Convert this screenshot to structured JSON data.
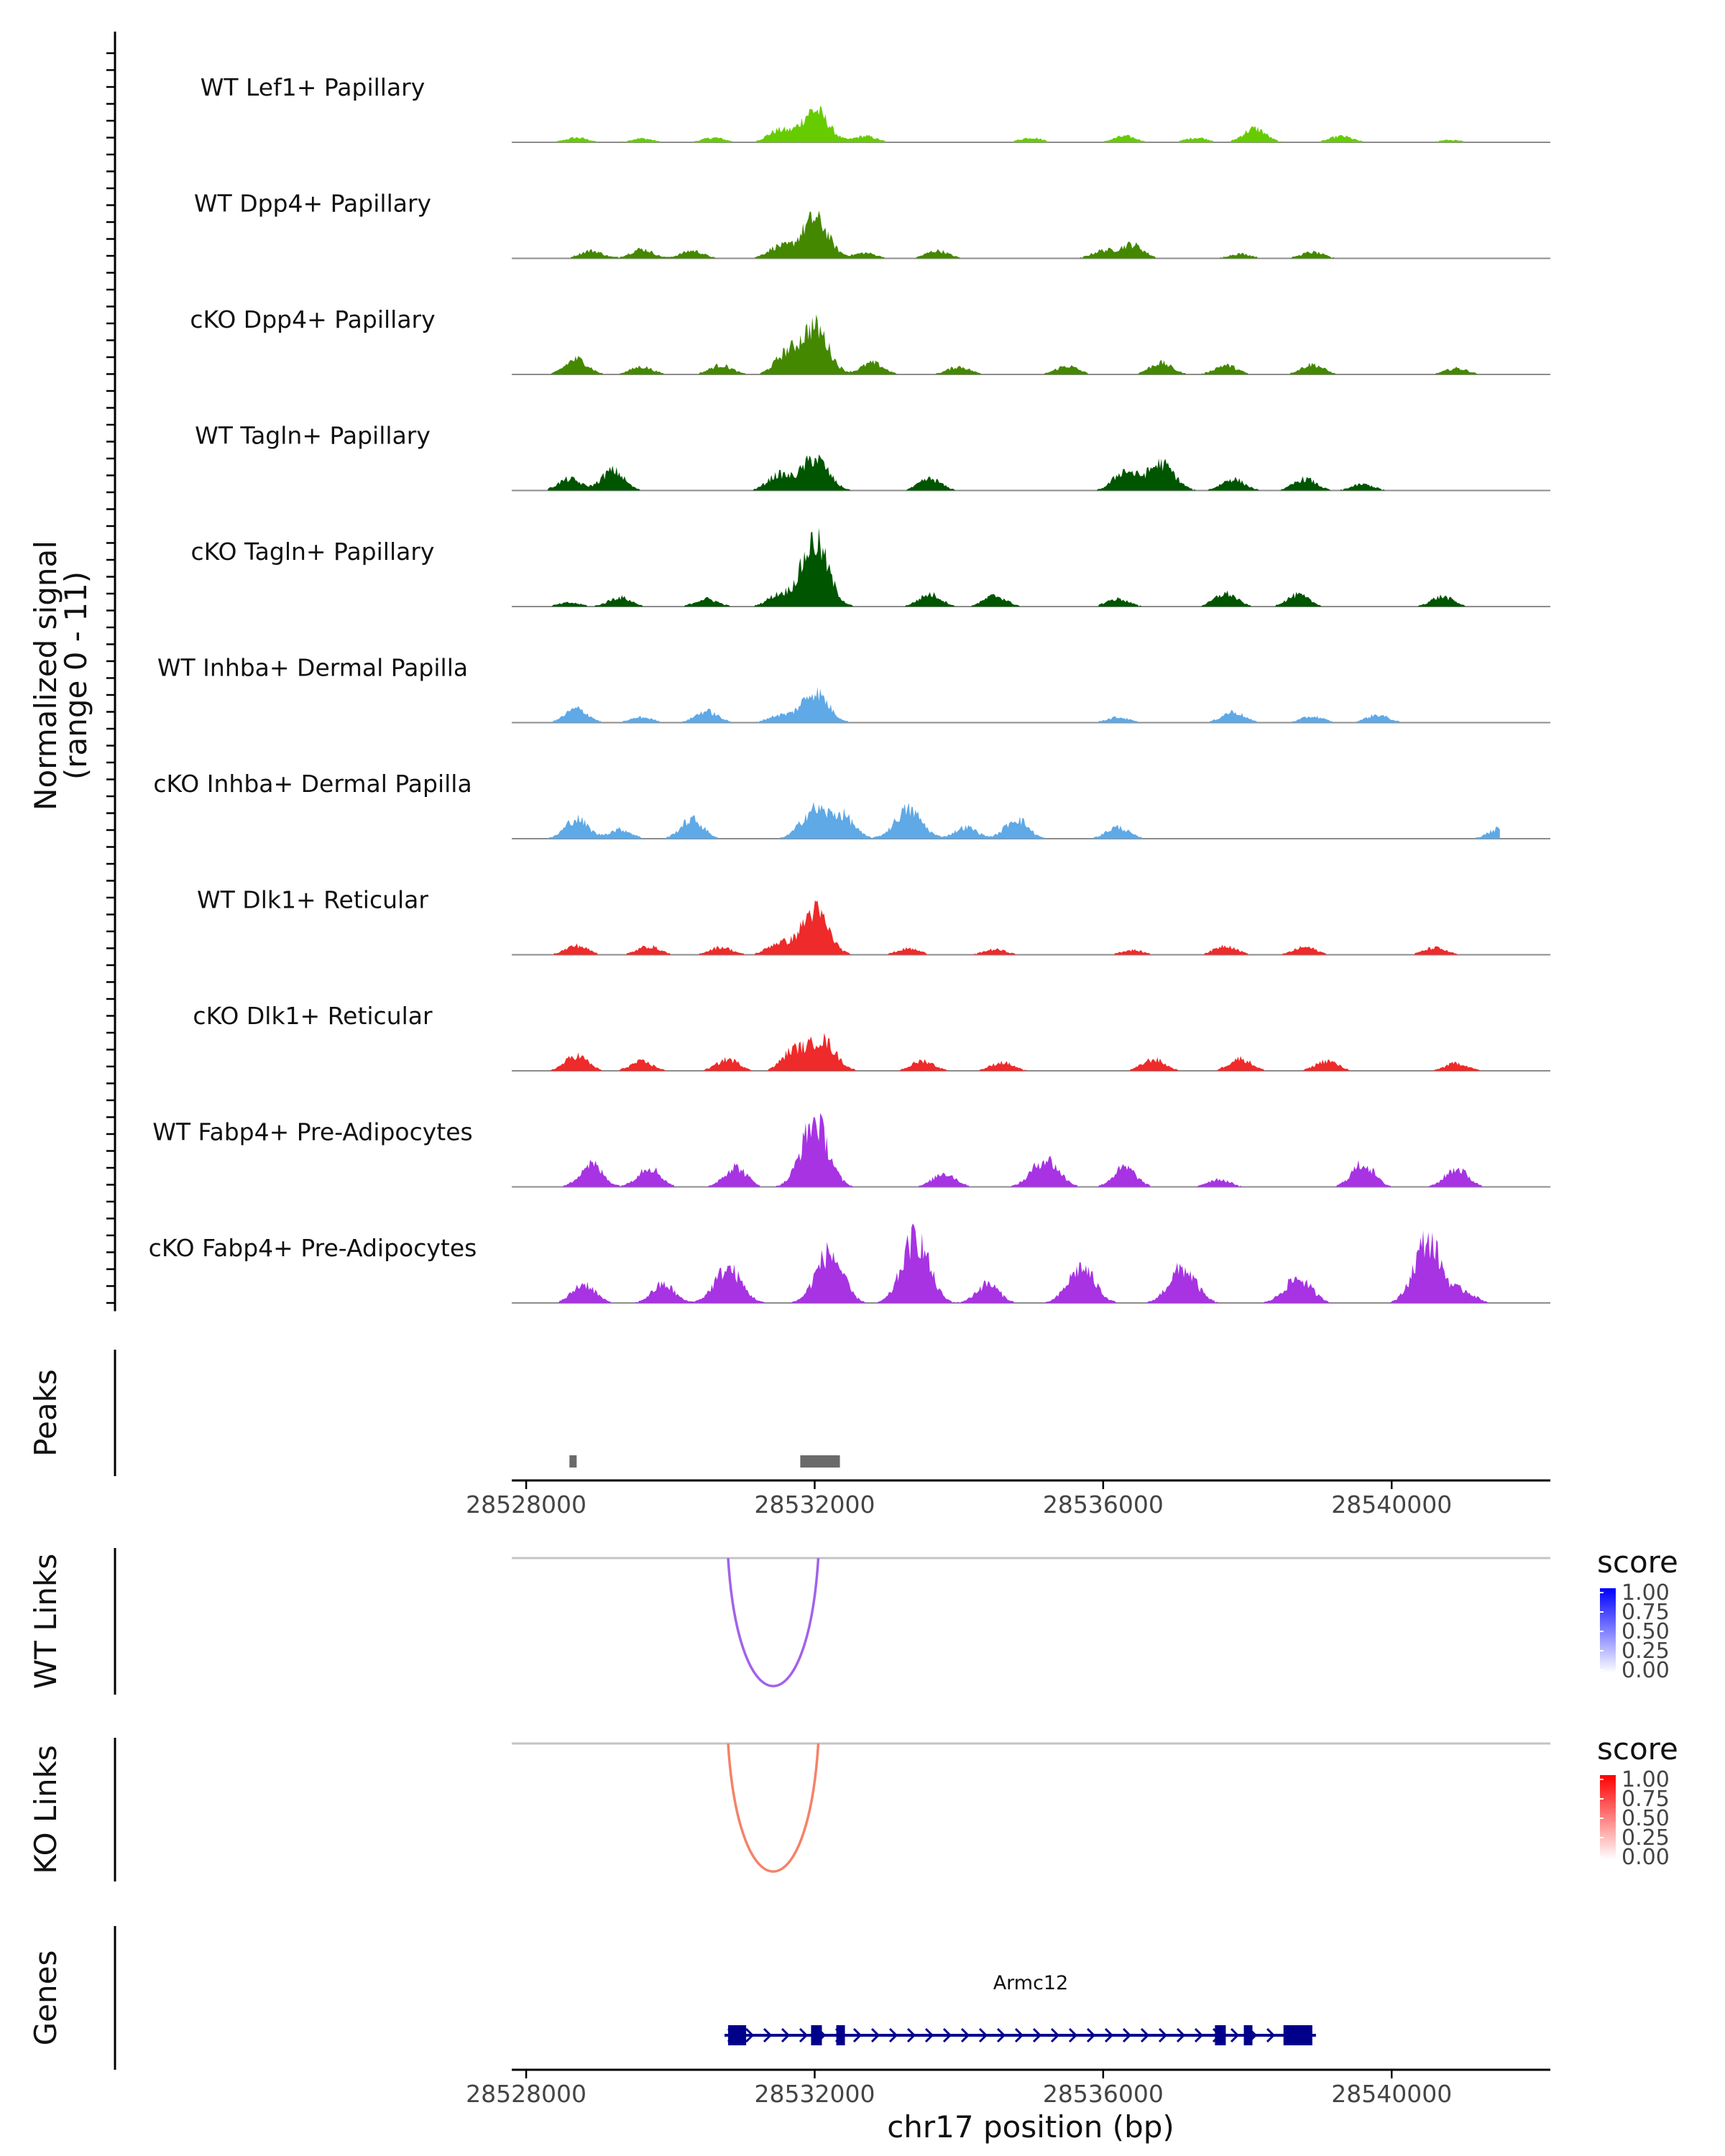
{
  "chart_data": {
    "type": "area",
    "title": "",
    "coverage": {
      "ylabel": [
        "Normalized signal",
        "(range 0 - 11)"
      ],
      "ylim": [
        0,
        11
      ],
      "xlim": [
        28527800,
        28542200
      ],
      "tracks": [
        {
          "name": "WT Lef1+ Papillary",
          "color": "#66cc00",
          "peaks": [
            [
              28528700,
              0.6
            ],
            [
              28529600,
              0.5
            ],
            [
              28530600,
              0.6
            ],
            [
              28531500,
              1.5
            ],
            [
              28532000,
              4.2
            ],
            [
              28532700,
              0.8
            ],
            [
              28535000,
              0.6
            ],
            [
              28536300,
              0.8
            ],
            [
              28537300,
              0.6
            ],
            [
              28538100,
              1.8
            ],
            [
              28539300,
              0.8
            ],
            [
              28540800,
              0.3
            ]
          ]
        },
        {
          "name": "WT Dpp4+ Papillary",
          "color": "#448800",
          "peaks": [
            [
              28528900,
              1.0
            ],
            [
              28529600,
              1.2
            ],
            [
              28530300,
              1.0
            ],
            [
              28531500,
              1.5
            ],
            [
              28532000,
              5.2
            ],
            [
              28532700,
              0.7
            ],
            [
              28533700,
              1.0
            ],
            [
              28536000,
              1.0
            ],
            [
              28536400,
              1.8
            ],
            [
              28537900,
              0.6
            ],
            [
              28538900,
              0.8
            ]
          ]
        },
        {
          "name": "cKO Dpp4+ Papillary",
          "color": "#448800",
          "peaks": [
            [
              28528700,
              2.0
            ],
            [
              28529600,
              1.0
            ],
            [
              28530700,
              1.2
            ],
            [
              28531600,
              2.5
            ],
            [
              28532000,
              6.2
            ],
            [
              28532800,
              1.5
            ],
            [
              28534000,
              1.0
            ],
            [
              28535500,
              1.1
            ],
            [
              28536800,
              1.5
            ],
            [
              28537700,
              1.2
            ],
            [
              28538900,
              1.3
            ],
            [
              28540900,
              0.8
            ]
          ]
        },
        {
          "name": "WT Tagln+ Papillary",
          "color": "#005500",
          "peaks": [
            [
              28528600,
              1.5
            ],
            [
              28529200,
              2.6
            ],
            [
              28531500,
              2.0
            ],
            [
              28532000,
              4.2
            ],
            [
              28533600,
              1.5
            ],
            [
              28536300,
              2.5
            ],
            [
              28536800,
              3.5
            ],
            [
              28537800,
              1.5
            ],
            [
              28538800,
              1.5
            ],
            [
              28539600,
              0.8
            ]
          ]
        },
        {
          "name": "cKO Tagln+ Papillary",
          "color": "#005500",
          "peaks": [
            [
              28528600,
              0.5
            ],
            [
              28529300,
              1.2
            ],
            [
              28530500,
              1.0
            ],
            [
              28531500,
              1.5
            ],
            [
              28532000,
              8.5
            ],
            [
              28533600,
              1.6
            ],
            [
              28534500,
              1.4
            ],
            [
              28536200,
              1.0
            ],
            [
              28537700,
              1.7
            ],
            [
              28538700,
              1.5
            ],
            [
              28540700,
              1.3
            ]
          ]
        },
        {
          "name": "WT Inhba+ Dermal Papilla",
          "color": "#5ea9e6",
          "peaks": [
            [
              28528700,
              1.8
            ],
            [
              28529600,
              0.7
            ],
            [
              28530500,
              1.5
            ],
            [
              28531500,
              0.9
            ],
            [
              28532000,
              4.0
            ],
            [
              28536200,
              0.7
            ],
            [
              28537800,
              1.4
            ],
            [
              28538900,
              0.8
            ],
            [
              28539800,
              1.0
            ]
          ]
        },
        {
          "name": "cKO Inhba+ Dermal Papilla",
          "color": "#5ea9e6",
          "peaks": [
            [
              28528700,
              2.6
            ],
            [
              28529300,
              1.2
            ],
            [
              28530300,
              2.5
            ],
            [
              28532000,
              3.8
            ],
            [
              28532400,
              2.8
            ],
            [
              28533300,
              3.8
            ],
            [
              28534100,
              1.5
            ],
            [
              28534800,
              2.6
            ],
            [
              28536200,
              1.5
            ],
            [
              28541500,
              1.3
            ]
          ]
        },
        {
          "name": "WT Dlk1+ Reticular",
          "color": "#ee2a2a",
          "peaks": [
            [
              28528700,
              1.2
            ],
            [
              28529700,
              1.1
            ],
            [
              28530700,
              1.0
            ],
            [
              28531500,
              1.5
            ],
            [
              28532000,
              5.8
            ],
            [
              28533300,
              0.8
            ],
            [
              28534500,
              0.7
            ],
            [
              28536400,
              0.6
            ],
            [
              28537700,
              1.2
            ],
            [
              28538800,
              1.0
            ],
            [
              28540600,
              0.9
            ]
          ]
        },
        {
          "name": "cKO Dlk1+ Reticular",
          "color": "#ee2a2a",
          "peaks": [
            [
              28528700,
              2.0
            ],
            [
              28529600,
              1.2
            ],
            [
              28530800,
              1.5
            ],
            [
              28531700,
              2.5
            ],
            [
              28532100,
              4.0
            ],
            [
              28533500,
              1.3
            ],
            [
              28534600,
              1.1
            ],
            [
              28536700,
              1.5
            ],
            [
              28537900,
              1.6
            ],
            [
              28539100,
              1.3
            ],
            [
              28540900,
              1.0
            ]
          ]
        },
        {
          "name": "WT Fabp4+ Pre-Adipocytes",
          "color": "#a733e3",
          "peaks": [
            [
              28528900,
              3.0
            ],
            [
              28529700,
              2.6
            ],
            [
              28530900,
              2.6
            ],
            [
              28532000,
              8.5
            ],
            [
              28533800,
              1.8
            ],
            [
              28535200,
              3.6
            ],
            [
              28536300,
              2.5
            ],
            [
              28537600,
              1.0
            ],
            [
              28539600,
              3.0
            ],
            [
              28540900,
              2.4
            ]
          ]
        },
        {
          "name": "cKO Fabp4+ Pre-Adipocytes",
          "color": "#a733e3",
          "peaks": [
            [
              28528800,
              2.5
            ],
            [
              28529900,
              2.4
            ],
            [
              28530800,
              4.5
            ],
            [
              28532200,
              6.5
            ],
            [
              28533400,
              8.5
            ],
            [
              28534400,
              2.5
            ],
            [
              28535700,
              4.6
            ],
            [
              28537100,
              4.5
            ],
            [
              28538700,
              3.2
            ],
            [
              28540500,
              8.2
            ],
            [
              28541000,
              1.5
            ]
          ]
        }
      ]
    },
    "peaks_track": {
      "label": "Peaks",
      "color": "#6b6b6b",
      "regions": [
        [
          28528600,
          28528700
        ],
        [
          28531800,
          28532350
        ]
      ]
    },
    "x_axis_top": {
      "ticks": [
        "28528000",
        "28532000",
        "28536000",
        "28540000"
      ],
      "tick_values": [
        28528000,
        28532000,
        28536000,
        28540000
      ]
    },
    "wt_links": {
      "label": "WT Links",
      "start": 28530800,
      "end": 28532050,
      "score": 0.6,
      "color": "#a262ea",
      "legend": {
        "title": "score",
        "ticks": [
          "1.00",
          "0.75",
          "0.50",
          "0.25",
          "0.00"
        ],
        "color_high": "#0000ff",
        "color_low": "#ffffff"
      }
    },
    "ko_links": {
      "label": "KO Links",
      "start": 28530800,
      "end": 28532050,
      "score": 0.55,
      "color": "#f48268",
      "legend": {
        "title": "score",
        "ticks": [
          "1.00",
          "0.75",
          "0.50",
          "0.25",
          "0.00"
        ],
        "color_high": "#ff0000",
        "color_low": "#ffffff"
      }
    },
    "genes": {
      "label": "Genes",
      "gene_name": "Armc12",
      "color": "#00008b",
      "start": 28530750,
      "end": 28538950,
      "exons": [
        [
          28530800,
          28531050
        ],
        [
          28531950,
          28532100
        ],
        [
          28532300,
          28532400
        ],
        [
          28537550,
          28537700
        ],
        [
          28537950,
          28538050
        ],
        [
          28538500,
          28538900
        ]
      ]
    },
    "x_axis_bottom": {
      "ticks": [
        "28528000",
        "28532000",
        "28536000",
        "28540000"
      ],
      "tick_values": [
        28528000,
        28532000,
        28536000,
        28540000
      ],
      "xlabel": "chr17 position (bp)"
    }
  }
}
